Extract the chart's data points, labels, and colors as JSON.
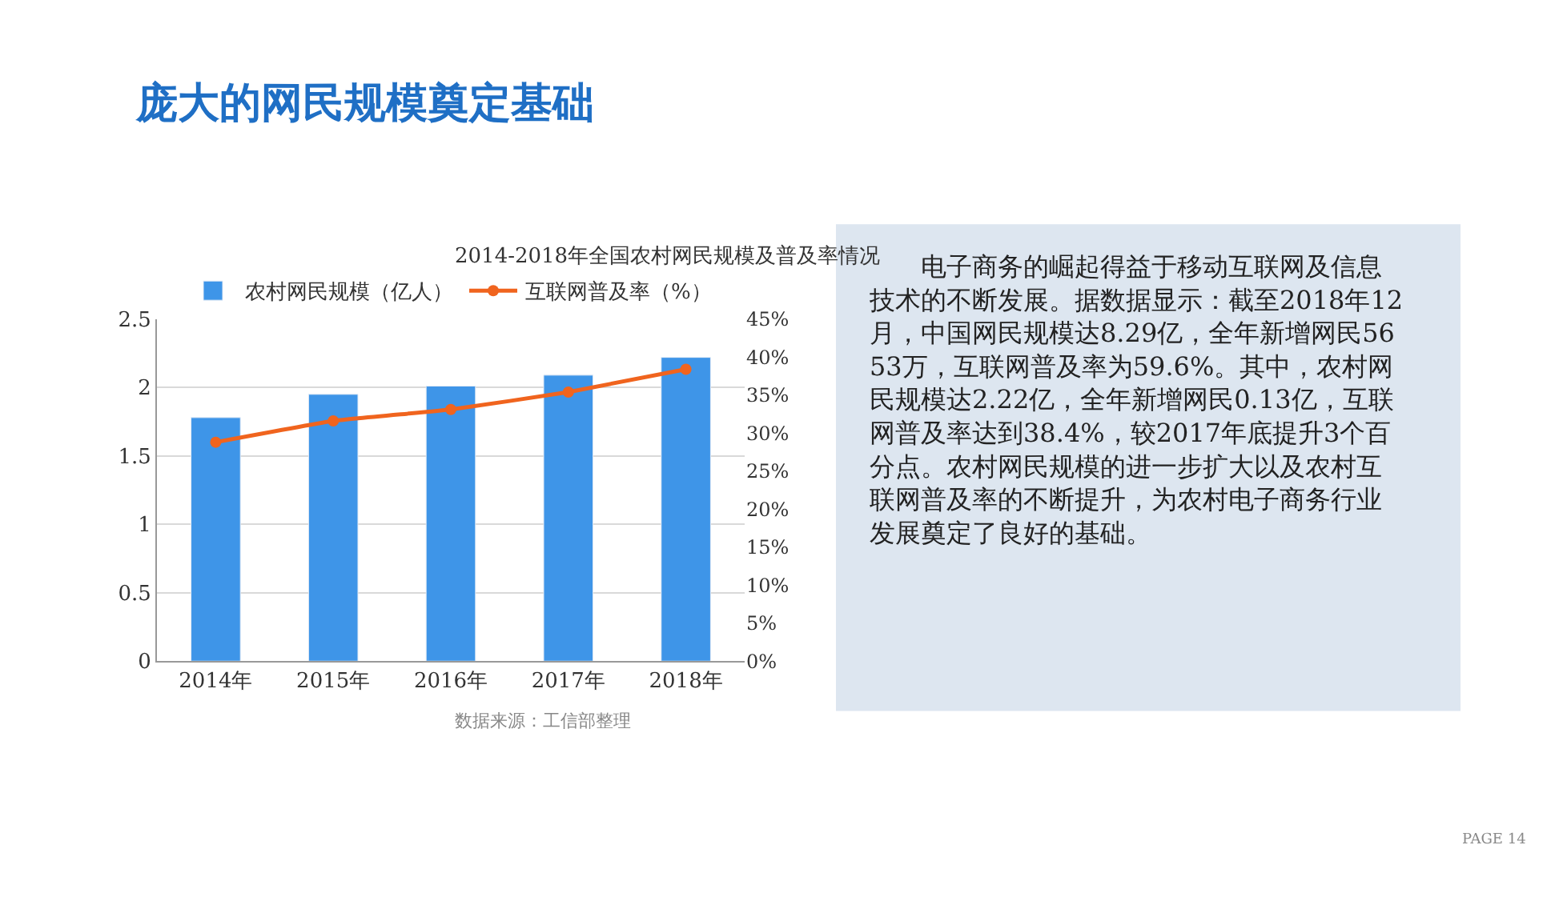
{
  "chart_data": [
    {
      "type": "bar",
      "title": "2014-2018年全国农村网民规模及普及率情况",
      "categories": [
        "2014年",
        "2015年",
        "2016年",
        "2017年",
        "2018年"
      ],
      "series": [
        {
          "name": "农村网民规模（亿人）",
          "color": "#3e95e8",
          "values": [
            1.78,
            1.95,
            2.01,
            2.09,
            2.22
          ]
        },
        {
          "name": "互联网普及率（%）",
          "type": "line",
          "axis": "y2",
          "marker": "circle",
          "color": "#f0641e",
          "values": [
            28.8,
            31.6,
            33.1,
            35.4,
            38.4
          ]
        }
      ],
      "ylim": [
        0,
        2.5
      ],
      "yticks": [
        0,
        {
          "value": 0.5,
          "label": "0.5"
        },
        1,
        {
          "value": 1.5,
          "label": "1.5"
        },
        2,
        {
          "value": 2.5,
          "label": "2.5"
        }
      ],
      "y2lim": [
        0,
        45
      ],
      "y2ticks": [
        {
          "value": 0,
          "label": "0%"
        },
        {
          "value": 5,
          "label": "5%"
        },
        {
          "value": 10,
          "label": "10%"
        },
        {
          "value": 15,
          "label": "15%"
        },
        {
          "value": 20,
          "label": "20%"
        },
        {
          "value": 25,
          "label": "25%"
        },
        {
          "value": 30,
          "label": "30%"
        },
        {
          "value": 35,
          "label": "35%"
        },
        {
          "value": 40,
          "label": "40%"
        },
        {
          "value": 45,
          "label": "45%"
        }
      ],
      "grid": "y",
      "legend": "top",
      "annotations": [
        "庞大的网民规模奠定基础",
        "数据来源：工信部整理"
      ]
    },
    {
      "type": "other",
      "annotations": [
        "电子商务的崛起得益于移动互联网及信息技术的不断发展。据数据显示：截至2018年12月，中国网民规模达8.29亿，全年新增网民5653万，互联网普及率为59.6%。其中，农村网民规模达2.22亿，全年新增网民0.13亿，互联网普及率达到38.4%，较2017年底提升3个百分点。农村网民规模的进一步扩大以及农村互联网普及率的不断提升，为农村电子商务行业发展奠定了良好的基础。",
        "PAGE 14"
      ]
    }
  ]
}
